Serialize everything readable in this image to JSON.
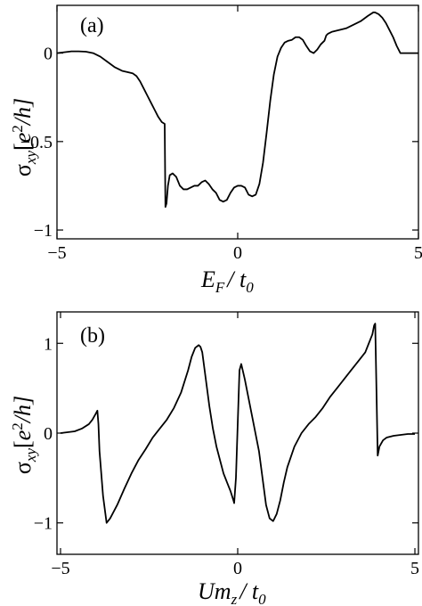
{
  "chart_data": [
    {
      "type": "line",
      "panel_label": "(a)",
      "ylabel": {
        "main": "σ",
        "sub": "xy",
        "unit_open": "[",
        "unit_e": "e",
        "unit_sup": "2",
        "unit_rest": "/h]"
      },
      "xlabel": {
        "main": "E",
        "sub": "F",
        "rest": "/ t",
        "rest_sub": "0"
      },
      "xlim": [
        -5,
        5
      ],
      "ylim": [
        -1.05,
        0.27
      ],
      "xticks": [
        -5,
        0,
        5
      ],
      "xtick_labels": [
        "−5",
        "0",
        "5"
      ],
      "yticks": [
        0,
        -0.5,
        -1
      ],
      "ytick_labels": [
        "0",
        "−0.5",
        "−1"
      ],
      "grid": false,
      "series": [
        {
          "x": [
            -5.0,
            -4.8,
            -4.6,
            -4.4,
            -4.2,
            -4.0,
            -3.8,
            -3.6,
            -3.4,
            -3.2,
            -3.0,
            -2.9,
            -2.8,
            -2.7,
            -2.6,
            -2.5,
            -2.4,
            -2.3,
            -2.2,
            -2.1,
            -2.02,
            -2.0,
            -1.97,
            -1.93,
            -1.88,
            -1.8,
            -1.7,
            -1.6,
            -1.5,
            -1.4,
            -1.3,
            -1.2,
            -1.1,
            -1.0,
            -0.9,
            -0.8,
            -0.7,
            -0.6,
            -0.5,
            -0.4,
            -0.3,
            -0.2,
            -0.1,
            0.0,
            0.1,
            0.2,
            0.3,
            0.4,
            0.5,
            0.6,
            0.7,
            0.8,
            0.9,
            1.0,
            1.1,
            1.2,
            1.3,
            1.4,
            1.5,
            1.6,
            1.7,
            1.8,
            1.9,
            2.0,
            2.1,
            2.2,
            2.3,
            2.4,
            2.45,
            2.5,
            2.6,
            2.8,
            3.0,
            3.2,
            3.4,
            3.6,
            3.75,
            3.8,
            3.9,
            4.0,
            4.1,
            4.2,
            4.3,
            4.4,
            4.5,
            4.6,
            5.0
          ],
          "y": [
            0.0,
            0.005,
            0.01,
            0.01,
            0.008,
            0.0,
            -0.02,
            -0.05,
            -0.08,
            -0.1,
            -0.11,
            -0.115,
            -0.13,
            -0.16,
            -0.2,
            -0.24,
            -0.28,
            -0.32,
            -0.36,
            -0.39,
            -0.4,
            -0.87,
            -0.85,
            -0.75,
            -0.69,
            -0.68,
            -0.7,
            -0.75,
            -0.77,
            -0.77,
            -0.76,
            -0.75,
            -0.75,
            -0.73,
            -0.72,
            -0.74,
            -0.77,
            -0.79,
            -0.83,
            -0.84,
            -0.83,
            -0.79,
            -0.76,
            -0.75,
            -0.75,
            -0.76,
            -0.8,
            -0.81,
            -0.8,
            -0.74,
            -0.62,
            -0.45,
            -0.27,
            -0.12,
            -0.02,
            0.03,
            0.06,
            0.07,
            0.075,
            0.09,
            0.09,
            0.075,
            0.04,
            0.01,
            0.0,
            0.02,
            0.05,
            0.07,
            0.1,
            0.11,
            0.12,
            0.13,
            0.14,
            0.16,
            0.18,
            0.21,
            0.23,
            0.23,
            0.22,
            0.2,
            0.17,
            0.13,
            0.09,
            0.04,
            0.0,
            0.0,
            0.0
          ]
        }
      ]
    },
    {
      "type": "line",
      "panel_label": "(b)",
      "ylabel": {
        "main": "σ",
        "sub": "xy",
        "unit_open": "[",
        "unit_e": "e",
        "unit_sup": "2",
        "unit_rest": "/h]"
      },
      "xlabel": {
        "main": "Um",
        "sub": "z",
        "rest": "/ t",
        "rest_sub": "0"
      },
      "xlim": [
        -5.1,
        5.1
      ],
      "ylim": [
        -1.35,
        1.35
      ],
      "xticks": [
        -5,
        0,
        5
      ],
      "xtick_labels": [
        "−5",
        "0",
        "5"
      ],
      "yticks": [
        1,
        0,
        -1
      ],
      "ytick_labels": [
        "1",
        "0",
        "−1"
      ],
      "grid": false,
      "series": [
        {
          "x": [
            -5.0,
            -4.8,
            -4.6,
            -4.4,
            -4.2,
            -4.1,
            -4.0,
            -3.96,
            -3.93,
            -3.9,
            -3.8,
            -3.7,
            -3.6,
            -3.4,
            -3.2,
            -3.0,
            -2.8,
            -2.6,
            -2.4,
            -2.2,
            -2.0,
            -1.8,
            -1.6,
            -1.4,
            -1.3,
            -1.2,
            -1.1,
            -1.05,
            -1.0,
            -0.9,
            -0.8,
            -0.7,
            -0.6,
            -0.5,
            -0.4,
            -0.3,
            -0.2,
            -0.12,
            -0.1,
            -0.05,
            0.0,
            0.05,
            0.1,
            0.2,
            0.3,
            0.4,
            0.5,
            0.6,
            0.7,
            0.8,
            0.9,
            1.0,
            1.1,
            1.2,
            1.3,
            1.4,
            1.6,
            1.8,
            2.0,
            2.2,
            2.4,
            2.6,
            2.8,
            3.0,
            3.2,
            3.4,
            3.6,
            3.7,
            3.8,
            3.85,
            3.88,
            3.9,
            3.95,
            4.0,
            4.1,
            4.2,
            4.4,
            4.6,
            4.8,
            5.0
          ],
          "y": [
            0.0,
            0.01,
            0.02,
            0.05,
            0.1,
            0.15,
            0.22,
            0.25,
            0.1,
            -0.2,
            -0.7,
            -1.0,
            -0.95,
            -0.8,
            -0.62,
            -0.45,
            -0.3,
            -0.18,
            -0.05,
            0.05,
            0.15,
            0.28,
            0.45,
            0.7,
            0.85,
            0.95,
            0.98,
            0.96,
            0.9,
            0.6,
            0.3,
            0.05,
            -0.15,
            -0.3,
            -0.45,
            -0.55,
            -0.65,
            -0.75,
            -0.78,
            -0.5,
            0.1,
            0.7,
            0.77,
            0.6,
            0.4,
            0.2,
            0.0,
            -0.2,
            -0.5,
            -0.8,
            -0.95,
            -0.98,
            -0.9,
            -0.75,
            -0.55,
            -0.38,
            -0.15,
            0.0,
            0.1,
            0.18,
            0.28,
            0.4,
            0.5,
            0.6,
            0.7,
            0.8,
            0.9,
            1.0,
            1.1,
            1.2,
            1.22,
            0.8,
            -0.25,
            -0.15,
            -0.08,
            -0.05,
            -0.03,
            -0.02,
            -0.01,
            -0.01
          ]
        }
      ]
    }
  ]
}
